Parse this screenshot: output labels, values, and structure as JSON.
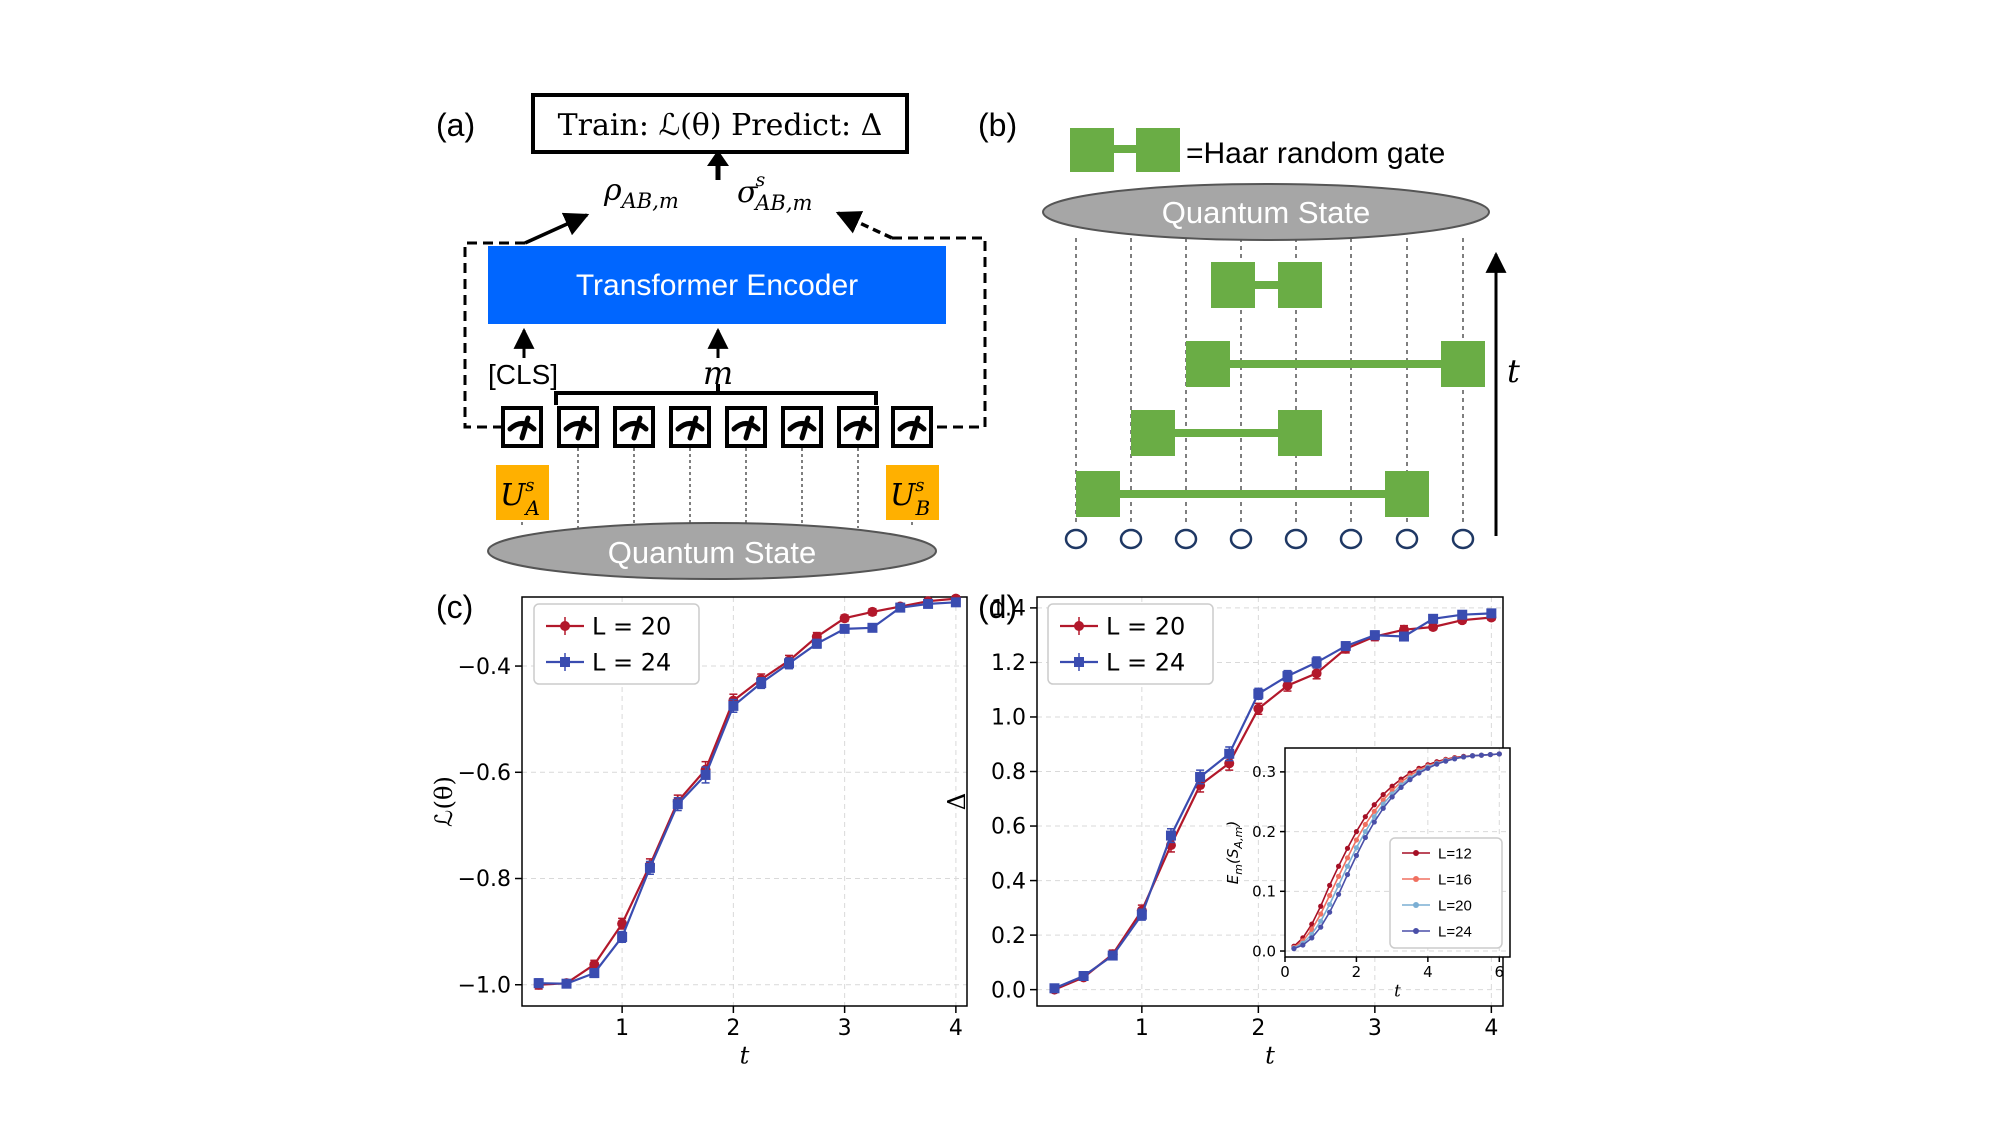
{
  "panels": {
    "a": {
      "label": "(a)",
      "output_box": "Train: ℒ(θ)   Predict: Δ",
      "rho": {
        "base": "ρ",
        "sub": "AB,m"
      },
      "sigma": {
        "base": "σ",
        "sup": "s",
        "sub": "AB,m"
      },
      "encoder": "Transformer Encoder",
      "cls": "[CLS]",
      "m": "m",
      "ua": {
        "base": "U",
        "sup": "s",
        "sub": "A"
      },
      "ub": {
        "base": "U",
        "sup": "s",
        "sub": "B"
      },
      "state": "Quantum State",
      "measurement_icon": "measurement-meter-icon",
      "colors": {
        "encoder": "#0066ff",
        "unitary": "#ffb000",
        "state": "#a6a6a6"
      }
    },
    "b": {
      "label": "(b)",
      "legend": "=Haar random gate",
      "state": "Quantum State",
      "t": "t",
      "colors": {
        "gate": "#6aad45"
      }
    },
    "c": {
      "label": "(c)"
    },
    "d": {
      "label": "(d)"
    }
  },
  "chart_data": [
    {
      "type": "line",
      "panel": "c",
      "xlabel": "t",
      "ylabel": "ℒ(θ)",
      "xticks": [
        "1",
        "2",
        "3",
        "4"
      ],
      "yticks": [
        "−1.0",
        "−0.8",
        "−0.6",
        "−0.4"
      ],
      "xlim": [
        0.1,
        4.1
      ],
      "ylim": [
        -1.04,
        -0.27
      ],
      "grid": true,
      "legend": "top-left",
      "series": [
        {
          "name": "L = 20",
          "color": "#b2182b",
          "marker": "circle",
          "x": [
            0.25,
            0.5,
            0.75,
            1.0,
            1.25,
            1.5,
            1.75,
            2.0,
            2.25,
            2.5,
            2.75,
            3.0,
            3.25,
            3.5,
            3.75,
            4.0
          ],
          "y": [
            -1.0,
            -0.997,
            -0.962,
            -0.885,
            -0.775,
            -0.655,
            -0.595,
            -0.465,
            -0.425,
            -0.39,
            -0.345,
            -0.31,
            -0.298,
            -0.288,
            -0.278,
            -0.273
          ],
          "err": [
            0.008,
            0.006,
            0.008,
            0.01,
            0.012,
            0.012,
            0.015,
            0.012,
            0.01,
            0.01,
            0.008,
            0.006,
            0.006,
            0.006,
            0.005,
            0.005
          ]
        },
        {
          "name": "L = 24",
          "color": "#3a4cb0",
          "marker": "square",
          "x": [
            0.25,
            0.5,
            0.75,
            1.0,
            1.25,
            1.5,
            1.75,
            2.0,
            2.25,
            2.5,
            2.75,
            3.0,
            3.25,
            3.5,
            3.75,
            4.0
          ],
          "y": [
            -0.997,
            -0.998,
            -0.978,
            -0.91,
            -0.78,
            -0.66,
            -0.605,
            -0.475,
            -0.432,
            -0.395,
            -0.358,
            -0.33,
            -0.328,
            -0.29,
            -0.283,
            -0.28
          ],
          "err": [
            0.008,
            0.006,
            0.008,
            0.01,
            0.012,
            0.012,
            0.015,
            0.012,
            0.01,
            0.01,
            0.008,
            0.006,
            0.006,
            0.006,
            0.005,
            0.005
          ]
        }
      ]
    },
    {
      "type": "line",
      "panel": "d",
      "xlabel": "t",
      "ylabel": "Δ",
      "xticks": [
        "1",
        "2",
        "3",
        "4"
      ],
      "yticks": [
        "0.0",
        "0.2",
        "0.4",
        "0.6",
        "0.8",
        "1.0",
        "1.2",
        "1.4"
      ],
      "xlim": [
        0.1,
        4.1
      ],
      "ylim": [
        -0.06,
        1.44
      ],
      "grid": true,
      "legend": "top-left",
      "series": [
        {
          "name": "L = 20",
          "color": "#b2182b",
          "marker": "circle",
          "x": [
            0.25,
            0.5,
            0.75,
            1.0,
            1.25,
            1.5,
            1.75,
            2.0,
            2.25,
            2.5,
            2.75,
            3.0,
            3.25,
            3.5,
            3.75,
            4.0
          ],
          "y": [
            0.0,
            0.045,
            0.13,
            0.29,
            0.53,
            0.75,
            0.83,
            1.03,
            1.115,
            1.16,
            1.25,
            1.295,
            1.32,
            1.33,
            1.355,
            1.365
          ],
          "err": [
            0.01,
            0.01,
            0.015,
            0.02,
            0.025,
            0.025,
            0.025,
            0.02,
            0.02,
            0.02,
            0.015,
            0.015,
            0.015,
            0.01,
            0.01,
            0.01
          ]
        },
        {
          "name": "L = 24",
          "color": "#3a4cb0",
          "marker": "square",
          "x": [
            0.25,
            0.5,
            0.75,
            1.0,
            1.25,
            1.5,
            1.75,
            2.0,
            2.25,
            2.5,
            2.75,
            3.0,
            3.25,
            3.5,
            3.75,
            4.0
          ],
          "y": [
            0.005,
            0.05,
            0.125,
            0.275,
            0.565,
            0.78,
            0.865,
            1.085,
            1.15,
            1.2,
            1.26,
            1.3,
            1.295,
            1.36,
            1.375,
            1.38
          ],
          "err": [
            0.01,
            0.01,
            0.015,
            0.02,
            0.025,
            0.025,
            0.025,
            0.02,
            0.02,
            0.02,
            0.015,
            0.015,
            0.015,
            0.01,
            0.01,
            0.01
          ]
        }
      ]
    },
    {
      "type": "line",
      "panel": "d-inset",
      "xlabel": "t",
      "ylabel": "𝔼ₘ(Sₐ,ₘ)",
      "ylabel_parts": {
        "base": "E",
        "sub1": "m",
        "arg": "(S",
        "sub2": "A,m",
        "close": ")"
      },
      "xticks": [
        "0",
        "2",
        "4",
        "6"
      ],
      "yticks": [
        "0.0",
        "0.1",
        "0.2",
        "0.3"
      ],
      "xlim": [
        0,
        6.3
      ],
      "ylim": [
        -0.01,
        0.34
      ],
      "grid": true,
      "legend": "bottom-right",
      "series": [
        {
          "name": "L=12",
          "color": "#a50f25",
          "x": [
            0.25,
            0.5,
            0.75,
            1.0,
            1.25,
            1.5,
            1.75,
            2.0,
            2.25,
            2.5,
            2.75,
            3.0,
            3.25,
            3.5,
            3.75,
            4.0,
            4.25,
            4.5,
            4.75,
            5.0,
            5.25,
            5.5,
            5.75,
            6.0
          ],
          "y": [
            0.008,
            0.022,
            0.045,
            0.075,
            0.11,
            0.142,
            0.172,
            0.2,
            0.225,
            0.245,
            0.262,
            0.276,
            0.288,
            0.298,
            0.306,
            0.312,
            0.317,
            0.321,
            0.324,
            0.326,
            0.327,
            0.328,
            0.329,
            0.33
          ]
        },
        {
          "name": "L=16",
          "color": "#f07060",
          "x": [
            0.25,
            0.5,
            0.75,
            1.0,
            1.25,
            1.5,
            1.75,
            2.0,
            2.25,
            2.5,
            2.75,
            3.0,
            3.25,
            3.5,
            3.75,
            4.0,
            4.25,
            4.5,
            4.75,
            5.0,
            5.25,
            5.5,
            5.75,
            6.0
          ],
          "y": [
            0.006,
            0.017,
            0.036,
            0.062,
            0.093,
            0.125,
            0.156,
            0.186,
            0.212,
            0.234,
            0.253,
            0.269,
            0.283,
            0.294,
            0.303,
            0.31,
            0.315,
            0.32,
            0.323,
            0.325,
            0.327,
            0.328,
            0.329,
            0.33
          ]
        },
        {
          "name": "L=20",
          "color": "#7bafd4",
          "x": [
            0.25,
            0.5,
            0.75,
            1.0,
            1.25,
            1.5,
            1.75,
            2.0,
            2.25,
            2.5,
            2.75,
            3.0,
            3.25,
            3.5,
            3.75,
            4.0,
            4.25,
            4.5,
            4.75,
            5.0,
            5.25,
            5.5,
            5.75,
            6.0
          ],
          "y": [
            0.005,
            0.013,
            0.028,
            0.05,
            0.078,
            0.11,
            0.142,
            0.173,
            0.2,
            0.225,
            0.246,
            0.263,
            0.278,
            0.29,
            0.3,
            0.308,
            0.314,
            0.319,
            0.322,
            0.325,
            0.327,
            0.328,
            0.329,
            0.33
          ]
        },
        {
          "name": "L=24",
          "color": "#4a4fa8",
          "x": [
            0.25,
            0.5,
            0.75,
            1.0,
            1.25,
            1.5,
            1.75,
            2.0,
            2.25,
            2.5,
            2.75,
            3.0,
            3.25,
            3.5,
            3.75,
            4.0,
            4.25,
            4.5,
            4.75,
            5.0,
            5.25,
            5.5,
            5.75,
            6.0
          ],
          "y": [
            0.004,
            0.01,
            0.022,
            0.04,
            0.065,
            0.095,
            0.128,
            0.16,
            0.19,
            0.216,
            0.239,
            0.258,
            0.274,
            0.287,
            0.298,
            0.306,
            0.313,
            0.318,
            0.322,
            0.325,
            0.327,
            0.328,
            0.329,
            0.33
          ]
        }
      ]
    }
  ]
}
